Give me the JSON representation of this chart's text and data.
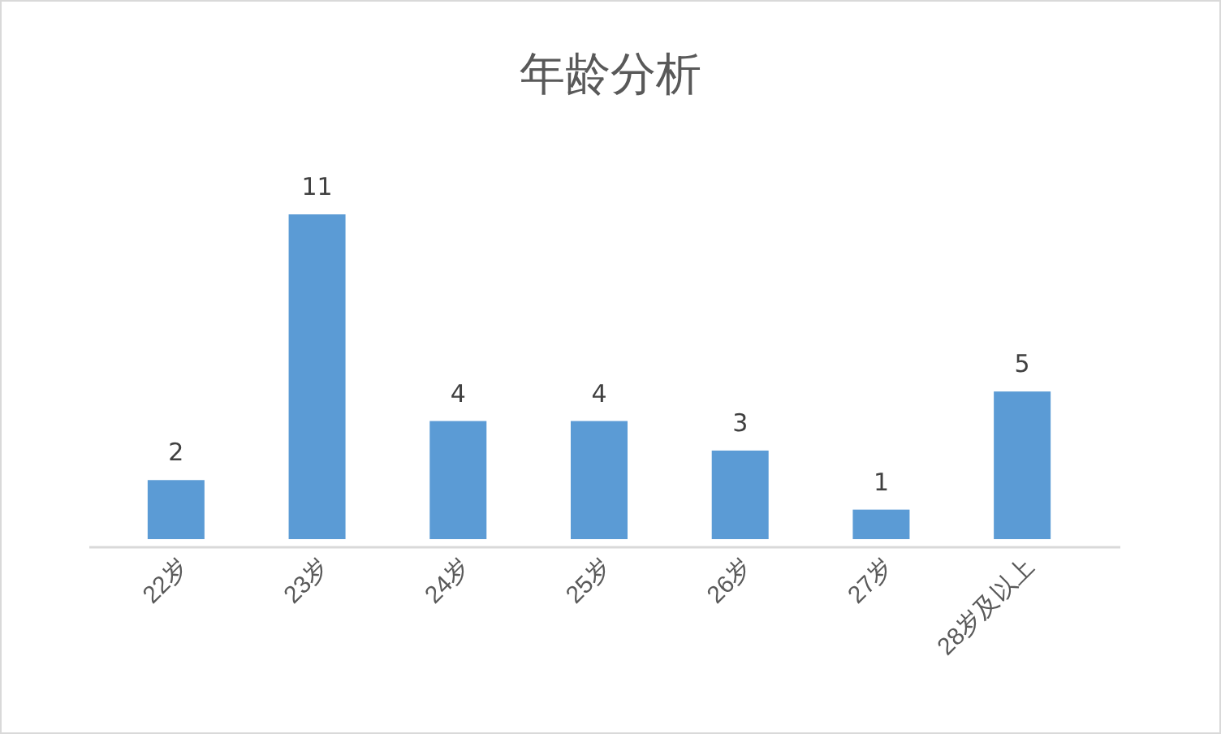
{
  "chart_data": {
    "type": "bar",
    "title": "年龄分析",
    "categories": [
      "22岁",
      "23岁",
      "24岁",
      "25岁",
      "26岁",
      "27岁",
      "28岁及以上"
    ],
    "values": [
      2,
      11,
      4,
      4,
      3,
      1,
      5
    ],
    "color": "#5b9bd5",
    "data_labels": true
  }
}
